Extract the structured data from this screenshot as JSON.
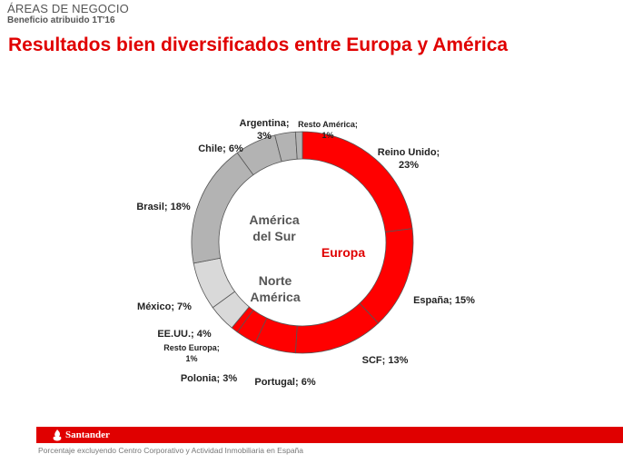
{
  "header": {
    "section": "ÁREAS DE NEGOCIO",
    "subtitle": "Beneficio atribuido 1T'16",
    "title": "Resultados bien diversificados entre Europa y América"
  },
  "chart_data": {
    "type": "pie",
    "variant": "donut",
    "title": "Resultados bien diversificados entre Europa y América",
    "unit": "%",
    "groups": [
      {
        "name": "Europa",
        "lines": [
          "Europa"
        ],
        "color": "#e00000"
      },
      {
        "name": "América del Sur",
        "lines": [
          "América",
          "del Sur"
        ],
        "color": "#b3b3b3"
      },
      {
        "name": "Norte América",
        "lines": [
          "Norte",
          "América"
        ],
        "color": "#d9d9d9"
      }
    ],
    "slices": [
      {
        "label": "Reino Unido",
        "value": 23,
        "text1": "Reino Unido;",
        "text2": "23%",
        "group": "Europa",
        "color": "#ff0000"
      },
      {
        "label": "España",
        "value": 15,
        "text1": "España; 15%",
        "group": "Europa",
        "color": "#ff0000"
      },
      {
        "label": "SCF",
        "value": 13,
        "text1": "SCF; 13%",
        "group": "Europa",
        "color": "#ff0000"
      },
      {
        "label": "Portugal",
        "value": 6,
        "text1": "Portugal; 6%",
        "group": "Europa",
        "color": "#ff0000"
      },
      {
        "label": "Polonia",
        "value": 3,
        "text1": "Polonia; 3%",
        "group": "Europa",
        "color": "#ff0000"
      },
      {
        "label": "Resto Europa",
        "value": 1,
        "text1": "Resto Europa;",
        "text2": "1%",
        "group": "Europa",
        "color": "#ff0000"
      },
      {
        "label": "EE.UU.",
        "value": 4,
        "text1": "EE.UU.; 4%",
        "group": "Norte América",
        "color": "#d9d9d9"
      },
      {
        "label": "México",
        "value": 7,
        "text1": "México; 7%",
        "group": "Norte América",
        "color": "#d9d9d9"
      },
      {
        "label": "Brasil",
        "value": 18,
        "text1": "Brasil; 18%",
        "group": "América del Sur",
        "color": "#b3b3b3"
      },
      {
        "label": "Chile",
        "value": 6,
        "text1": "Chile; 6%",
        "group": "América del Sur",
        "color": "#b3b3b3"
      },
      {
        "label": "Argentina",
        "value": 3,
        "text1": "Argentina;",
        "text2": "3%",
        "group": "América del Sur",
        "color": "#b3b3b3"
      },
      {
        "label": "Resto América",
        "value": 1,
        "text1": "Resto América;",
        "text2": "1%",
        "group": "América del Sur",
        "color": "#b3b3b3"
      }
    ]
  },
  "footer": {
    "brand": "Santander",
    "note": "Porcentaje excluyendo Centro Corporativo y Actividad Inmobiliaria en España",
    "accent_color": "#e00000"
  }
}
